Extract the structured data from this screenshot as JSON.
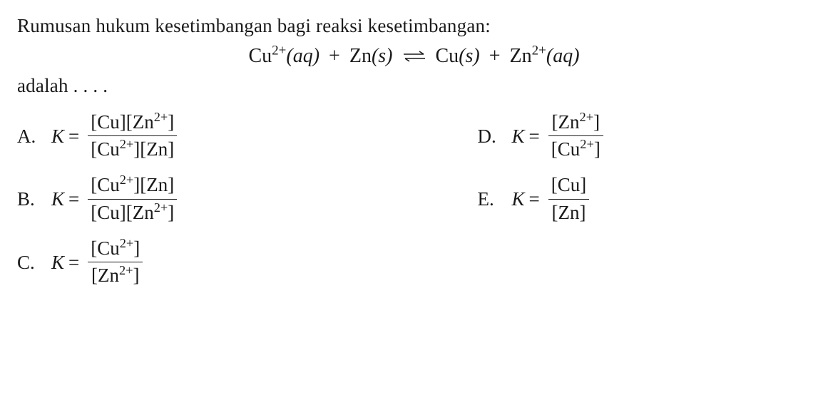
{
  "question": {
    "line1": "Rumusan hukum kesetimbangan bagi reaksi kesetimbangan:",
    "lead_out": "adalah . . . .",
    "equation": {
      "lhs1": "Cu",
      "lhs1_sup": "2+",
      "lhs1_state": "(aq)",
      "plus": "+",
      "lhs2": "Zn",
      "lhs2_state": "(s)",
      "rhs1": "Cu",
      "rhs1_state": "(s)",
      "rhs2": "Zn",
      "rhs2_sup": "2+",
      "rhs2_state": "(aq)"
    }
  },
  "symbols": {
    "K": "K",
    "equals": "="
  },
  "options": {
    "A": {
      "letter": "A.",
      "num": "[Cu][Zn<sup>2+</sup>]",
      "den": "[Cu<sup>2+</sup>][Zn]"
    },
    "B": {
      "letter": "B.",
      "num": "[Cu<sup>2+</sup>][Zn]",
      "den": "[Cu][Zn<sup>2+</sup>]"
    },
    "C": {
      "letter": "C.",
      "num": "[Cu<sup>2+</sup>]",
      "den": "[Zn<sup>2+</sup>]"
    },
    "D": {
      "letter": "D.",
      "num": "[Zn<sup>2+</sup>]",
      "den": "[Cu<sup>2+</sup>]"
    },
    "E": {
      "letter": "E.",
      "num": "[Cu]",
      "den": "[Zn]"
    }
  },
  "style": {
    "font_family": "Times New Roman",
    "base_fontsize_pt": 20,
    "text_color": "#1a1a1a",
    "background_color": "#ffffff",
    "fraction_bar_color": "#1a1a1a"
  }
}
